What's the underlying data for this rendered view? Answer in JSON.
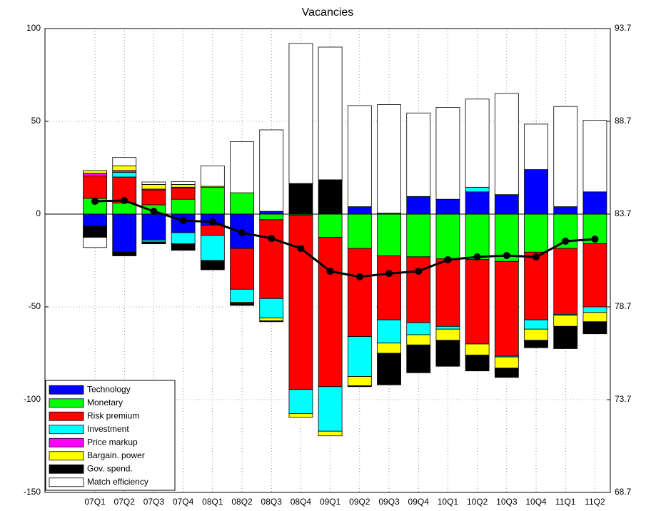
{
  "chart_data": {
    "type": "bar",
    "stacked": true,
    "title": "Vacancies",
    "categories": [
      "07Q1",
      "07Q2",
      "07Q3",
      "07Q4",
      "08Q1",
      "08Q2",
      "08Q3",
      "08Q4",
      "09Q1",
      "09Q2",
      "09Q3",
      "09Q4",
      "10Q1",
      "10Q2",
      "10Q3",
      "10Q4",
      "11Q1",
      "11Q2"
    ],
    "series": [
      {
        "name": "Technology",
        "color": "#0000ff",
        "values": [
          -6.5,
          -20.5,
          -14,
          -10,
          -6,
          -18.5,
          1.5,
          0,
          0,
          4,
          0.5,
          9.5,
          8,
          12,
          10.5,
          24,
          4,
          12
        ]
      },
      {
        "name": "Monetary",
        "color": "#00ff00",
        "values": [
          8.5,
          6,
          5,
          8,
          14.5,
          11.5,
          -3,
          -0.5,
          -12.5,
          -18.5,
          -22.5,
          -23,
          -24,
          -24.5,
          -25.5,
          -20.5,
          -18.5,
          -16
        ]
      },
      {
        "name": "Risk premium",
        "color": "#ff0000",
        "values": [
          12,
          14,
          8,
          6,
          -5.5,
          -22,
          -42.5,
          -94,
          -80.5,
          -47.5,
          -34.5,
          -35.5,
          -36.5,
          -45.5,
          -51,
          -36.5,
          -35.5,
          -34
        ]
      },
      {
        "name": "Investment",
        "color": "#00ffff",
        "values": [
          0,
          2.5,
          -1,
          -6,
          -13.5,
          -7,
          -10.5,
          -13,
          -24,
          -21.5,
          -12.5,
          -6.5,
          -1.5,
          2.5,
          -0.5,
          -5,
          -0.5,
          -3
        ]
      },
      {
        "name": "Price markup",
        "color": "#ff00ff",
        "values": [
          1.5,
          1,
          0.5,
          0.5,
          0,
          0,
          0,
          0,
          0,
          0,
          0,
          0,
          0,
          0,
          0,
          0,
          0,
          0
        ]
      },
      {
        "name": "Bargain. power",
        "color": "#ffff00",
        "values": [
          1.5,
          2.5,
          2.5,
          1.5,
          0.5,
          -0.5,
          -1.5,
          -2,
          -2.5,
          -5,
          -5.5,
          -5.5,
          -6,
          -6,
          -6,
          -6,
          -6,
          -5
        ]
      },
      {
        "name": "Gov. spend.",
        "color": "#000000",
        "values": [
          -6,
          -2,
          -1,
          -3.5,
          -5,
          -1.2,
          -0.5,
          16.5,
          18.5,
          -0.5,
          -17,
          -15,
          -14,
          -8.5,
          -5,
          -4,
          -12,
          -6.5
        ]
      },
      {
        "name": "Match efficiency",
        "color": "#ffffff",
        "values": [
          -5.5,
          4.5,
          1.3,
          1.5,
          11,
          27.5,
          43.9,
          75.5,
          71.5,
          54.5,
          58.5,
          45,
          49.5,
          47.5,
          54.5,
          24.5,
          54,
          38.5
        ]
      }
    ],
    "line": {
      "axis": "y2",
      "color": "#000000",
      "values": [
        84.39,
        84.43,
        83.85,
        83.35,
        83.28,
        82.7,
        82.39,
        81.85,
        80.62,
        80.32,
        80.5,
        80.62,
        81.24,
        81.39,
        81.47,
        81.39,
        82.24,
        82.35
      ]
    },
    "ylim": [
      -150,
      100
    ],
    "yticks": [
      -150,
      -100,
      -50,
      0,
      50,
      100
    ],
    "y2lim": [
      68.7,
      93.7
    ],
    "y2ticks": [
      68.7,
      73.7,
      78.7,
      83.7,
      88.7,
      93.7
    ],
    "grid": true,
    "legend": "lower left"
  }
}
